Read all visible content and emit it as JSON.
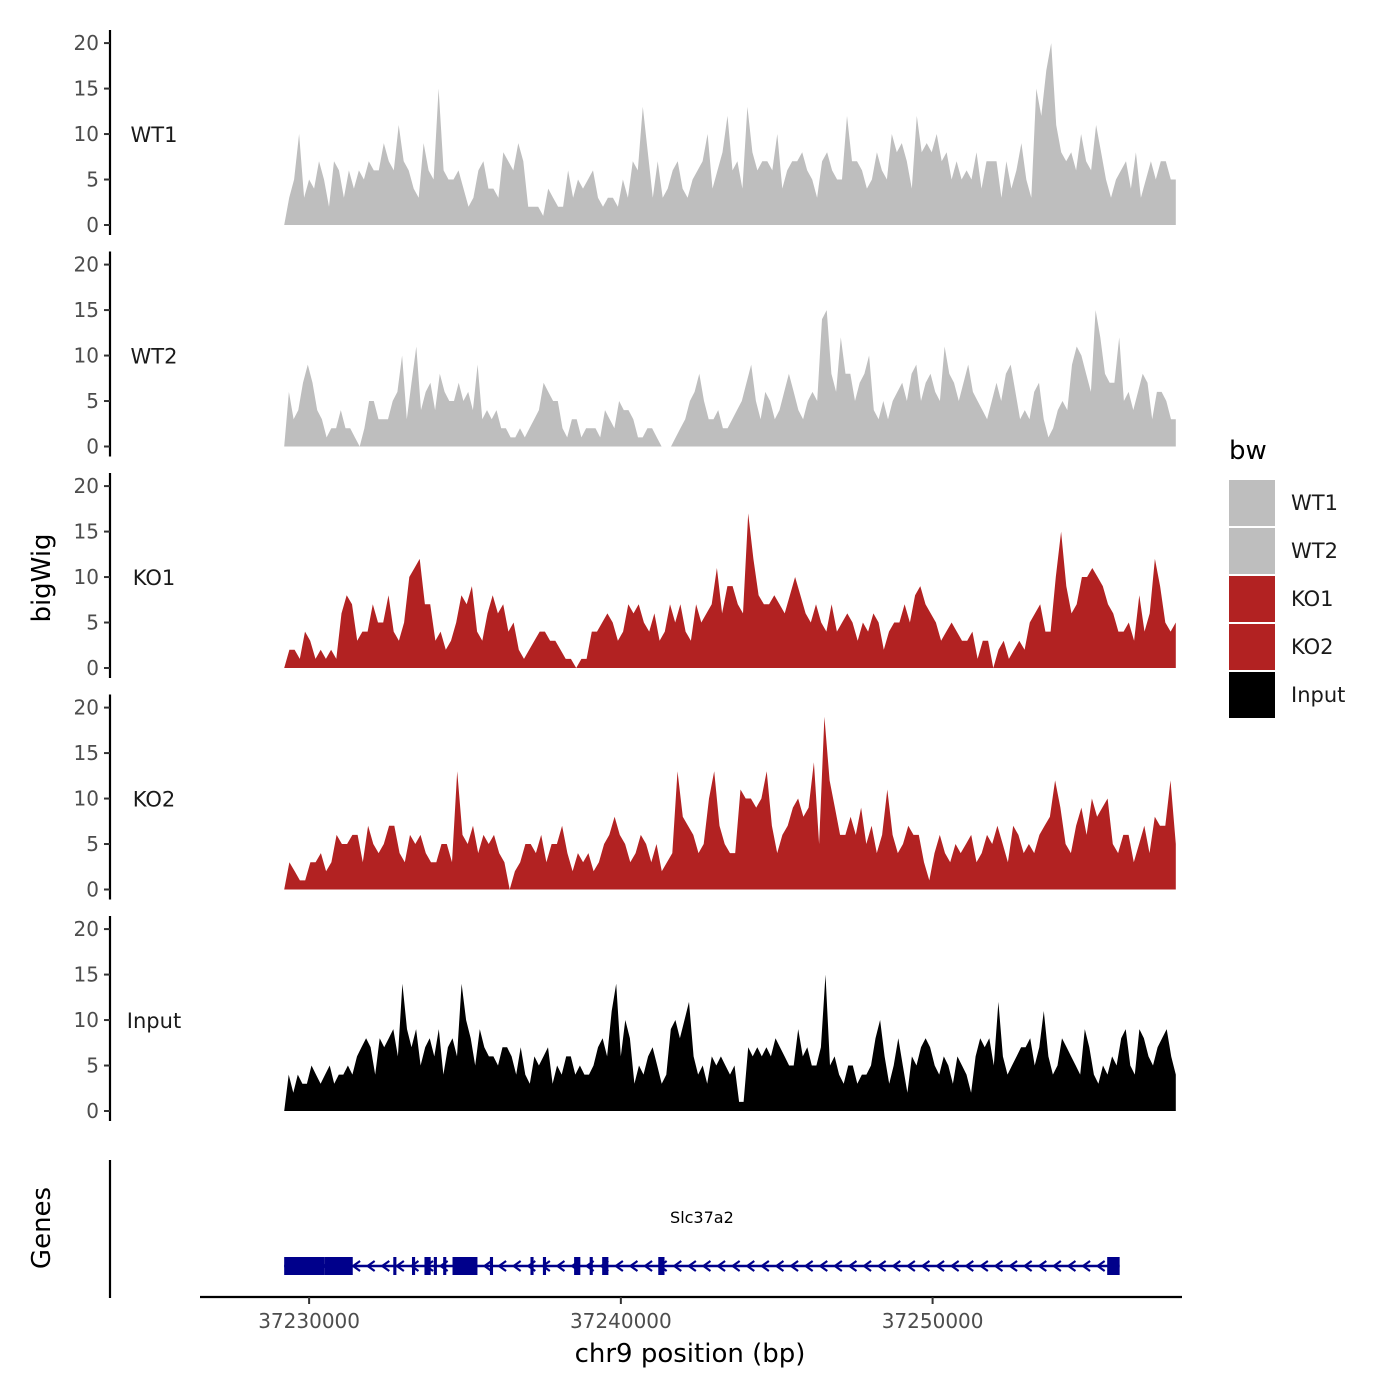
{
  "chart_data": {
    "type": "area",
    "chromosome": "chr9",
    "xlabel": "chr9 position (bp)",
    "ylabel": "bigWig",
    "genes_label": "Genes",
    "xlim": [
      37226500,
      37258000
    ],
    "data_xrange": [
      37229200,
      37257800
    ],
    "x_ticks": [
      37230000,
      37240000,
      37250000
    ],
    "x_tick_labels": [
      "37230000",
      "37240000",
      "37250000"
    ],
    "ylim": [
      0,
      21
    ],
    "y_ticks": [
      0,
      5,
      10,
      15,
      20
    ],
    "y_tick_labels": [
      "0",
      "5",
      "10",
      "15",
      "20"
    ],
    "legend": {
      "title": "bw",
      "entries": [
        {
          "label": "WT1",
          "color": "#BEBEBE"
        },
        {
          "label": "WT2",
          "color": "#BEBEBE"
        },
        {
          "label": "KO1",
          "color": "#B22222"
        },
        {
          "label": "KO2",
          "color": "#B22222"
        },
        {
          "label": "Input",
          "color": "#000000"
        }
      ]
    },
    "series": [
      {
        "name": "WT1",
        "color": "#BEBEBE",
        "values": [
          0,
          3,
          5,
          10,
          3,
          5,
          4,
          7,
          5,
          2,
          7,
          6,
          3,
          6,
          4,
          6,
          5,
          7,
          6,
          6,
          9,
          7,
          6,
          11,
          7,
          6,
          4,
          3,
          9,
          6,
          5,
          15,
          6,
          5,
          5,
          6,
          4,
          2,
          3,
          6,
          7,
          4,
          4,
          3,
          8,
          7,
          6,
          9,
          7,
          2,
          2,
          2,
          1,
          4,
          3,
          2,
          2,
          6,
          3,
          5,
          4,
          5,
          6,
          3,
          2,
          3,
          3,
          2,
          5,
          3,
          7,
          6,
          13,
          8,
          3,
          7,
          3,
          4,
          6,
          7,
          4,
          3,
          5,
          6,
          7,
          10,
          4,
          6,
          8,
          12,
          6,
          7,
          4,
          13,
          8,
          6,
          7,
          7,
          6,
          10,
          4,
          6,
          7,
          7,
          8,
          6,
          5,
          3,
          7,
          8,
          6,
          5,
          5,
          12,
          7,
          7,
          6,
          4,
          5,
          8,
          6,
          5,
          10,
          8,
          9,
          7,
          4,
          12,
          8,
          9,
          8,
          10,
          7,
          8,
          5,
          7,
          5,
          6,
          5,
          8,
          4,
          7,
          7,
          7,
          3,
          7,
          4,
          6,
          9,
          5,
          3,
          15,
          12,
          17,
          20,
          11,
          8,
          7,
          8,
          6,
          10,
          7,
          6,
          11,
          8,
          5,
          3,
          5,
          6,
          7,
          4,
          8,
          3,
          5,
          7,
          5,
          7,
          7,
          5,
          5
        ]
      },
      {
        "name": "WT2",
        "color": "#BEBEBE",
        "values": [
          0,
          6,
          3,
          4,
          7,
          9,
          7,
          4,
          3,
          1,
          2,
          2,
          4,
          2,
          2,
          1,
          0,
          2,
          5,
          5,
          3,
          3,
          3,
          5,
          6,
          10,
          3,
          7,
          11,
          4,
          6,
          7,
          4,
          8,
          6,
          5,
          5,
          7,
          5,
          6,
          4,
          9,
          3,
          4,
          3,
          4,
          2,
          2,
          1,
          1,
          2,
          1,
          2,
          3,
          4,
          7,
          6,
          5,
          5,
          2,
          1,
          3,
          3,
          1,
          2,
          2,
          2,
          1,
          4,
          3,
          2,
          5,
          4,
          4,
          3,
          1,
          1,
          2,
          2,
          1,
          0,
          0,
          0,
          1,
          2,
          3,
          5,
          6,
          8,
          5,
          3,
          3,
          4,
          2,
          2,
          3,
          4,
          5,
          7,
          9,
          5,
          3,
          6,
          5,
          3,
          4,
          6,
          8,
          6,
          4,
          3,
          5,
          6,
          5,
          14,
          15,
          8,
          6,
          12,
          8,
          8,
          5,
          7,
          8,
          10,
          4,
          3,
          5,
          3,
          5,
          6,
          7,
          5,
          8,
          9,
          5,
          7,
          8,
          6,
          5,
          11,
          8,
          7,
          5,
          7,
          9,
          6,
          5,
          4,
          3,
          5,
          7,
          5,
          8,
          9,
          6,
          3,
          4,
          3,
          6,
          7,
          3,
          1,
          2,
          4,
          5,
          4,
          9,
          11,
          10,
          8,
          6,
          15,
          12,
          8,
          7,
          7,
          12,
          5,
          6,
          4,
          6,
          8,
          7,
          3,
          6,
          6,
          5,
          3,
          3
        ]
      },
      {
        "name": "KO1",
        "color": "#B22222",
        "values": [
          0,
          2,
          2,
          1,
          4,
          3,
          1,
          2,
          1,
          2,
          1,
          6,
          8,
          7,
          3,
          4,
          4,
          7,
          5,
          5,
          8,
          4,
          3,
          5,
          10,
          11,
          12,
          7,
          7,
          3,
          4,
          2,
          3,
          5,
          8,
          7,
          9,
          4,
          3,
          6,
          8,
          6,
          7,
          4,
          5,
          2,
          1,
          2,
          3,
          4,
          4,
          3,
          3,
          2,
          1,
          1,
          0,
          1,
          1,
          4,
          4,
          5,
          6,
          5,
          3,
          4,
          7,
          6,
          7,
          5,
          4,
          6,
          3,
          4,
          7,
          5,
          7,
          4,
          3,
          7,
          5,
          6,
          7,
          11,
          6,
          9,
          9,
          7,
          6,
          17,
          12,
          8,
          7,
          7,
          8,
          7,
          6,
          8,
          10,
          8,
          6,
          5,
          7,
          5,
          4,
          7,
          4,
          5,
          6,
          5,
          3,
          5,
          4,
          6,
          5,
          2,
          4,
          5,
          5,
          7,
          5,
          8,
          9,
          7,
          6,
          5,
          3,
          4,
          5,
          4,
          3,
          3,
          4,
          1,
          3,
          3,
          0,
          2,
          3,
          1,
          2,
          3,
          2,
          5,
          6,
          7,
          4,
          4,
          10,
          15,
          9,
          6,
          7,
          10,
          10,
          11,
          10,
          9,
          7,
          6,
          4,
          4,
          5,
          3,
          8,
          4,
          6,
          12,
          9,
          5,
          4,
          5
        ]
      },
      {
        "name": "KO2",
        "color": "#B22222",
        "values": [
          0,
          3,
          2,
          1,
          1,
          3,
          3,
          4,
          2,
          3,
          6,
          5,
          5,
          6,
          6,
          3,
          7,
          5,
          4,
          5,
          7,
          7,
          4,
          3,
          6,
          5,
          6,
          4,
          3,
          3,
          5,
          5,
          3,
          13,
          6,
          5,
          7,
          4,
          6,
          5,
          6,
          4,
          3,
          0,
          2,
          3,
          5,
          5,
          4,
          6,
          3,
          5,
          5,
          7,
          4,
          2,
          4,
          3,
          4,
          2,
          3,
          5,
          6,
          8,
          6,
          5,
          3,
          4,
          6,
          5,
          3,
          5,
          2,
          3,
          4,
          13,
          8,
          7,
          6,
          4,
          5,
          10,
          13,
          7,
          5,
          4,
          4,
          11,
          10,
          10,
          9,
          10,
          13,
          7,
          4,
          6,
          7,
          9,
          10,
          8,
          9,
          14,
          5,
          19,
          12,
          9,
          6,
          6,
          8,
          6,
          9,
          5,
          7,
          4,
          6,
          11,
          6,
          4,
          5,
          7,
          6,
          6,
          3,
          1,
          4,
          6,
          4,
          3,
          5,
          4,
          5,
          6,
          3,
          4,
          6,
          5,
          7,
          5,
          3,
          7,
          6,
          4,
          5,
          4,
          6,
          7,
          8,
          12,
          9,
          5,
          4,
          7,
          9,
          6,
          10,
          8,
          9,
          10,
          5,
          4,
          6,
          6,
          3,
          5,
          7,
          4,
          8,
          7,
          7,
          12,
          5
        ]
      },
      {
        "name": "Input",
        "color": "#000000",
        "values": [
          0,
          4,
          2,
          4,
          3,
          3,
          5,
          4,
          3,
          4,
          5,
          3,
          4,
          4,
          5,
          4,
          6,
          7,
          8,
          7,
          4,
          8,
          7,
          8,
          9,
          6,
          14,
          9,
          7,
          9,
          5,
          7,
          8,
          6,
          9,
          4,
          7,
          8,
          6,
          14,
          10,
          8,
          5,
          9,
          7,
          6,
          6,
          5,
          7,
          7,
          6,
          4,
          7,
          4,
          3,
          6,
          5,
          6,
          7,
          3,
          5,
          4,
          6,
          6,
          4,
          5,
          4,
          4,
          5,
          7,
          8,
          6,
          11,
          14,
          6,
          10,
          8,
          3,
          5,
          4,
          6,
          7,
          5,
          3,
          4,
          9,
          10,
          8,
          10,
          12,
          6,
          4,
          5,
          3,
          6,
          5,
          6,
          5,
          4,
          5,
          1,
          1,
          7,
          6,
          7,
          6,
          7,
          6,
          8,
          7,
          6,
          5,
          5,
          9,
          6,
          7,
          5,
          5,
          7,
          15,
          5,
          6,
          4,
          3,
          5,
          5,
          3,
          4,
          4,
          5,
          8,
          10,
          6,
          3,
          5,
          8,
          5,
          2,
          6,
          5,
          7,
          8,
          7,
          5,
          4,
          6,
          5,
          3,
          6,
          5,
          4,
          2,
          6,
          8,
          7,
          8,
          5,
          12,
          6,
          4,
          5,
          6,
          7,
          7,
          8,
          5,
          7,
          11,
          6,
          4,
          5,
          8,
          7,
          6,
          5,
          4,
          9,
          7,
          4,
          3,
          5,
          4,
          6,
          5,
          8,
          9,
          5,
          4,
          9,
          8,
          6,
          5,
          7,
          8,
          9,
          6,
          4
        ]
      }
    ],
    "genes": [
      {
        "name": "Slc37a2",
        "strand": "-",
        "start": 37229200,
        "end": 37256000,
        "color": "#00008B",
        "exons": [
          [
            37229200,
            37230500
          ],
          [
            37230500,
            37231400
          ],
          [
            37232700,
            37232800
          ],
          [
            37233300,
            37233400
          ],
          [
            37233700,
            37233900
          ],
          [
            37234000,
            37234100
          ],
          [
            37234300,
            37234400
          ],
          [
            37234600,
            37235400
          ],
          [
            37235800,
            37235900
          ],
          [
            37237100,
            37237200
          ],
          [
            37237500,
            37237600
          ],
          [
            37238500,
            37238700
          ],
          [
            37239000,
            37239100
          ],
          [
            37239400,
            37239600
          ],
          [
            37241200,
            37241400
          ],
          [
            37255600,
            37256000
          ]
        ]
      }
    ]
  }
}
